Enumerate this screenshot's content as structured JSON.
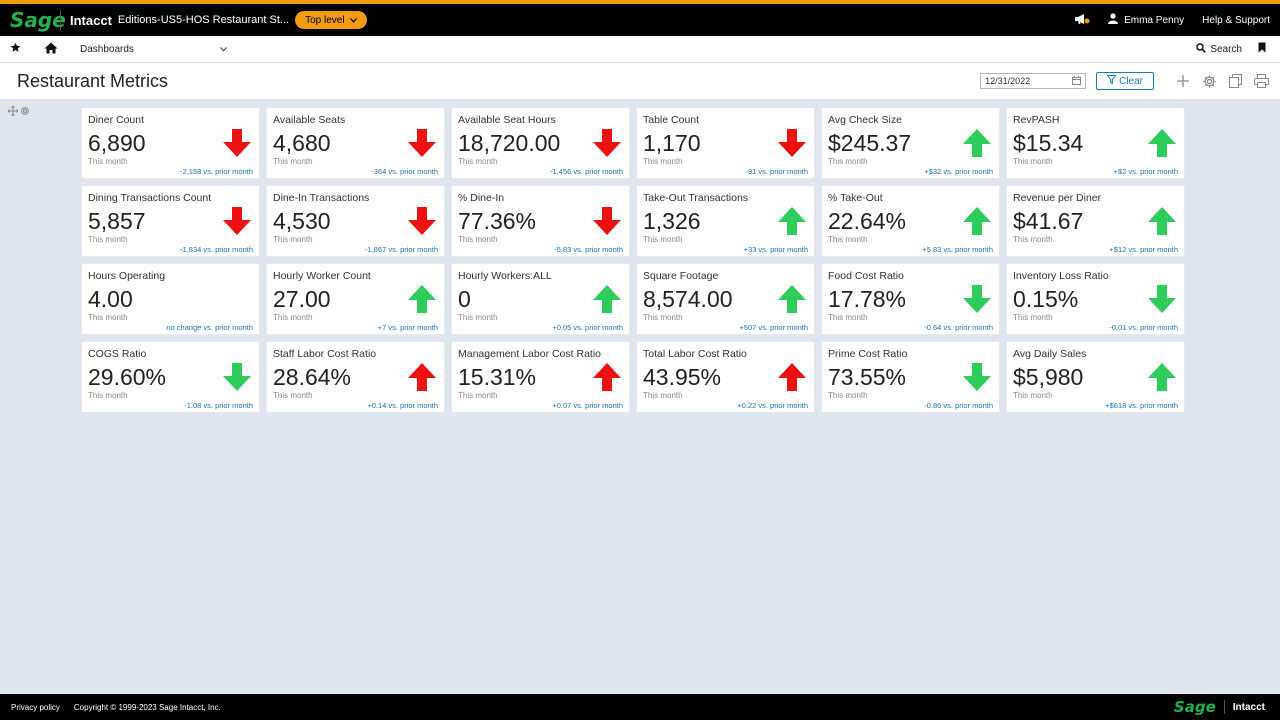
{
  "header": {
    "logo": "Sage",
    "brand": "Intacct",
    "company": "Editions-US5-HOS Restaurant St...",
    "level_label": "Top level",
    "user_name": "Emma Penny",
    "help_label": "Help & Support"
  },
  "nav": {
    "dashboards_label": "Dashboards",
    "search_label": "Search"
  },
  "page": {
    "title": "Restaurant Metrics",
    "date_value": "12/31/2022",
    "clear_label": "Clear"
  },
  "cards": [
    {
      "title": "Diner Count",
      "value": "6,890",
      "period": "This month",
      "comparison": "-2,158 vs. prior month",
      "trend": "down",
      "color": "red"
    },
    {
      "title": "Available Seats",
      "value": "4,680",
      "period": "This month",
      "comparison": "-364 vs. prior month",
      "trend": "down",
      "color": "red"
    },
    {
      "title": "Available Seat Hours",
      "value": "18,720.00",
      "period": "This month",
      "comparison": "-1,456 vs. prior month",
      "trend": "down",
      "color": "red"
    },
    {
      "title": "Table Count",
      "value": "1,170",
      "period": "This month",
      "comparison": "-91 vs. prior month",
      "trend": "down",
      "color": "red"
    },
    {
      "title": "Avg Check Size",
      "value": "$245.37",
      "period": "This month",
      "comparison": "+$32 vs. prior month",
      "trend": "up",
      "color": "green"
    },
    {
      "title": "RevPASH",
      "value": "$15.34",
      "period": "This month",
      "comparison": "+$2 vs. prior month",
      "trend": "up",
      "color": "green"
    },
    {
      "title": "Dining Transactions Count",
      "value": "5,857",
      "period": "This month",
      "comparison": "-1,834 vs. prior month",
      "trend": "down",
      "color": "red"
    },
    {
      "title": "Dine-In Transactions",
      "value": "4,530",
      "period": "This month",
      "comparison": "-1,867 vs. prior month",
      "trend": "down",
      "color": "red"
    },
    {
      "title": "% Dine-In",
      "value": "77.36%",
      "period": "This month",
      "comparison": "-5.83 vs. prior month",
      "trend": "down",
      "color": "red"
    },
    {
      "title": "Take-Out Transactions",
      "value": "1,326",
      "period": "This month",
      "comparison": "+33 vs. prior month",
      "trend": "up",
      "color": "green"
    },
    {
      "title": "% Take-Out",
      "value": "22.64%",
      "period": "This month",
      "comparison": "+5.83 vs. prior month",
      "trend": "up",
      "color": "green"
    },
    {
      "title": "Revenue per Diner",
      "value": "$41.67",
      "period": "This month",
      "comparison": "+$12 vs. prior month",
      "trend": "up",
      "color": "green"
    },
    {
      "title": "Hours Operating",
      "value": "4.00",
      "period": "This month",
      "comparison": "no change vs. prior month",
      "trend": "none",
      "color": "none"
    },
    {
      "title": "Hourly Worker Count",
      "value": "27.00",
      "period": "This month",
      "comparison": "+7 vs. prior month",
      "trend": "up",
      "color": "green"
    },
    {
      "title": "Hourly Workers:ALL",
      "value": "0",
      "period": "This month",
      "comparison": "+0.05 vs. prior month",
      "trend": "up",
      "color": "green"
    },
    {
      "title": "Square Footage",
      "value": "8,574.00",
      "period": "This month",
      "comparison": "+507 vs. prior month",
      "trend": "up",
      "color": "green"
    },
    {
      "title": "Food Cost Ratio",
      "value": "17.78%",
      "period": "This month",
      "comparison": "-0.64 vs. prior month",
      "trend": "down",
      "color": "green"
    },
    {
      "title": "Inventory Loss Ratio",
      "value": "0.15%",
      "period": "This month",
      "comparison": "-0.01 vs. prior month",
      "trend": "down",
      "color": "green"
    },
    {
      "title": "COGS Ratio",
      "value": "29.60%",
      "period": "This month",
      "comparison": "-1.08 vs. prior month",
      "trend": "down",
      "color": "green"
    },
    {
      "title": "Staff Labor Cost Ratio",
      "value": "28.64%",
      "period": "This month",
      "comparison": "+0.14 vs. prior month",
      "trend": "up",
      "color": "red"
    },
    {
      "title": "Management Labor Cost Ratio",
      "value": "15.31%",
      "period": "This month",
      "comparison": "+0.07 vs. prior month",
      "trend": "up",
      "color": "red"
    },
    {
      "title": "Total Labor Cost Ratio",
      "value": "43.95%",
      "period": "This month",
      "comparison": "+0.22 vs. prior month",
      "trend": "up",
      "color": "red"
    },
    {
      "title": "Prime Cost Ratio",
      "value": "73.55%",
      "period": "This month",
      "comparison": "-0.86 vs. prior month",
      "trend": "down",
      "color": "green"
    },
    {
      "title": "Avg Daily Sales",
      "value": "$5,980",
      "period": "This month",
      "comparison": "+$618 vs. prior month",
      "trend": "up",
      "color": "green"
    }
  ],
  "colors": {
    "red": "#ee1111",
    "green": "#2ecc5a",
    "accent": "#f39c12",
    "link": "#1a72b5"
  },
  "footer": {
    "privacy": "Privacy policy",
    "copyright": "Copyright © 1999-2023 Sage Intacct, Inc.",
    "logo": "Sage",
    "brand": "Intacct"
  }
}
